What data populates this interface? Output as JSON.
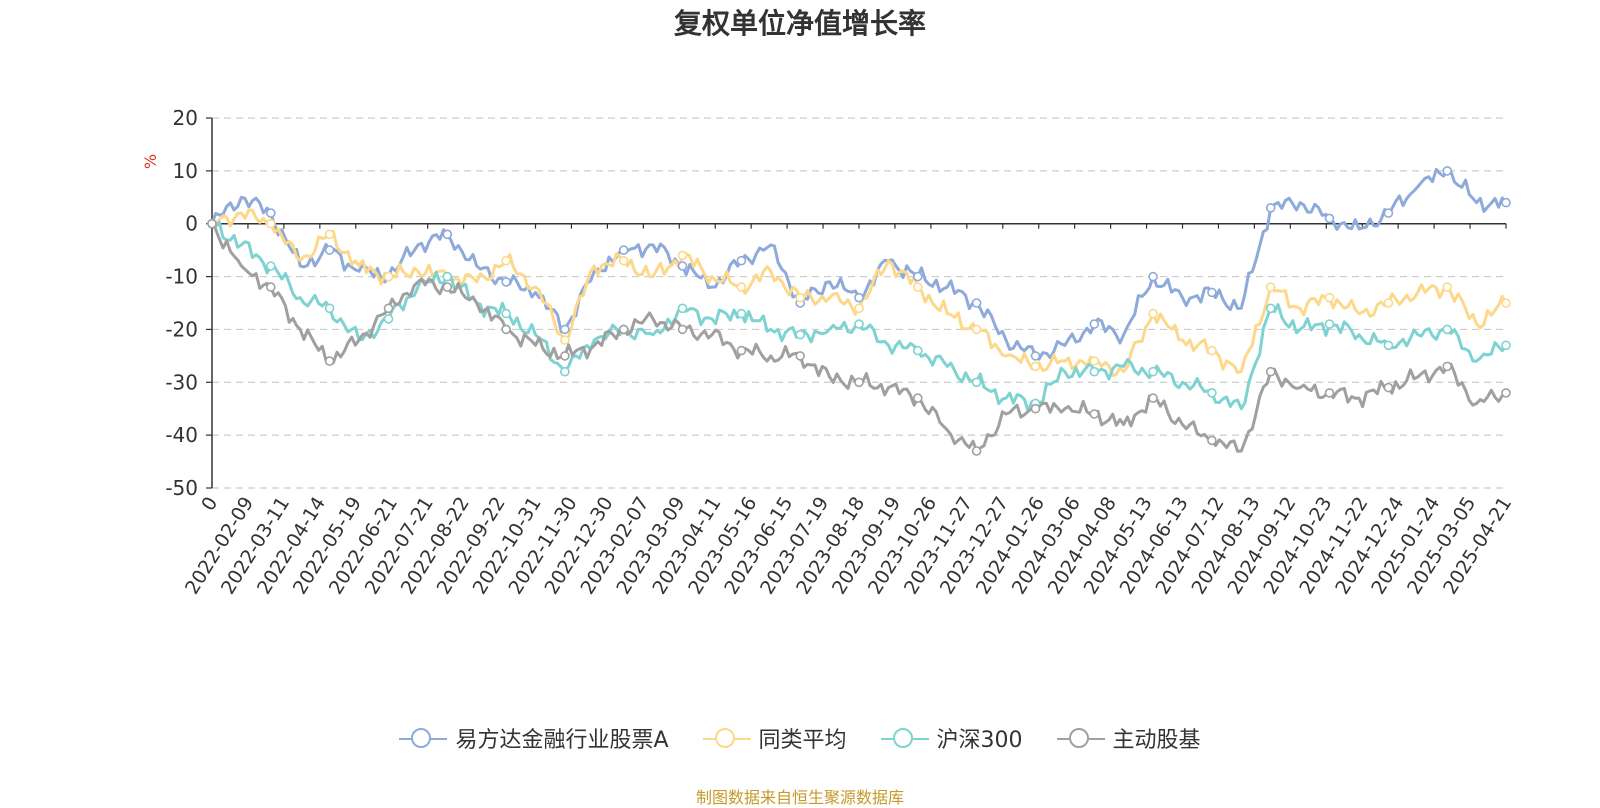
{
  "chart_data": {
    "type": "line",
    "title": "复权单位净值增长率",
    "ylabel": "%",
    "ylim": [
      -50,
      20
    ],
    "yticks": [
      20,
      10,
      0,
      -10,
      -20,
      -30,
      -40,
      -50
    ],
    "grid": true,
    "legend_position": "bottom",
    "xtick_labels": [
      "0",
      "2022-02-09",
      "2022-03-11",
      "2022-04-14",
      "2022-05-19",
      "2022-06-21",
      "2022-07-21",
      "2022-08-22",
      "2022-09-22",
      "2022-10-31",
      "2022-11-30",
      "2022-12-30",
      "2023-02-07",
      "2023-03-09",
      "2023-04-11",
      "2023-05-16",
      "2023-06-15",
      "2023-07-19",
      "2023-08-18",
      "2023-09-19",
      "2023-10-26",
      "2023-11-27",
      "2023-12-27",
      "2024-01-26",
      "2024-03-06",
      "2024-04-08",
      "2024-05-13",
      "2024-06-13",
      "2024-07-12",
      "2024-08-13",
      "2024-09-12",
      "2024-10-23",
      "2024-11-22",
      "2024-12-24",
      "2025-01-24",
      "2025-03-05",
      "2025-04-21"
    ],
    "series": [
      {
        "name": "易方达金融行业股票A",
        "color": "#8eaadb",
        "values": [
          0,
          5,
          2,
          -8,
          -5,
          -9,
          -10,
          -4,
          -2,
          -8,
          -11,
          -13,
          -20,
          -9,
          -5,
          -4,
          -8,
          -12,
          -7,
          -4,
          -15,
          -11,
          -14,
          -7,
          -10,
          -12,
          -15,
          -22,
          -25,
          -23,
          -19,
          -21,
          -10,
          -14,
          -13,
          -16,
          3,
          4,
          1,
          -1,
          2,
          7,
          10,
          4,
          4
        ]
      },
      {
        "name": "同类平均",
        "color": "#fdd88a",
        "values": [
          0,
          2,
          0,
          -7,
          -2,
          -8,
          -10,
          -9,
          -10,
          -11,
          -7,
          -12,
          -22,
          -8,
          -7,
          -10,
          -6,
          -10,
          -12,
          -9,
          -14,
          -14,
          -16,
          -7,
          -12,
          -17,
          -20,
          -25,
          -27,
          -26,
          -26,
          -28,
          -17,
          -22,
          -24,
          -28,
          -12,
          -16,
          -14,
          -17,
          -15,
          -13,
          -12,
          -19,
          -15
        ]
      },
      {
        "name": "沪深300",
        "color": "#7fd2d2",
        "values": [
          0,
          -4,
          -8,
          -14,
          -16,
          -22,
          -18,
          -12,
          -10,
          -15,
          -17,
          -21,
          -28,
          -22,
          -20,
          -21,
          -16,
          -18,
          -17,
          -20,
          -21,
          -20,
          -19,
          -23,
          -24,
          -27,
          -30,
          -33,
          -34,
          -28,
          -28,
          -27,
          -28,
          -30,
          -32,
          -35,
          -16,
          -20,
          -19,
          -21,
          -23,
          -21,
          -20,
          -26,
          -23
        ]
      },
      {
        "name": "主动股基",
        "color": "#a0a0a0",
        "values": [
          0,
          -8,
          -12,
          -20,
          -26,
          -22,
          -16,
          -11,
          -12,
          -15,
          -20,
          -23,
          -25,
          -23,
          -20,
          -18,
          -20,
          -21,
          -24,
          -25,
          -25,
          -29,
          -30,
          -31,
          -33,
          -39,
          -43,
          -36,
          -35,
          -35,
          -36,
          -38,
          -33,
          -38,
          -41,
          -43,
          -28,
          -31,
          -32,
          -33,
          -31,
          -29,
          -27,
          -34,
          -32
        ]
      }
    ]
  },
  "legend": {
    "items": [
      "易方达金融行业股票A",
      "同类平均",
      "沪深300",
      "主动股基"
    ],
    "colors": [
      "#8eaadb",
      "#fdd88a",
      "#7fd2d2",
      "#a0a0a0"
    ]
  },
  "source_text": "制图数据来自恒生聚源数据库"
}
